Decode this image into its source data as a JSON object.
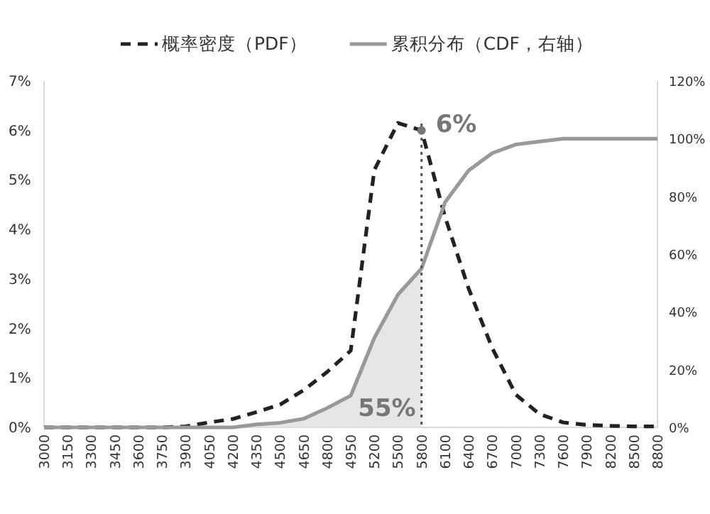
{
  "chart_data": {
    "type": "line",
    "categories": [
      "3000",
      "3150",
      "3300",
      "3450",
      "3600",
      "3750",
      "3900",
      "4050",
      "4200",
      "4350",
      "4500",
      "4650",
      "4800",
      "4950",
      "5200",
      "5500",
      "5800",
      "6100",
      "6400",
      "6700",
      "7000",
      "7300",
      "7600",
      "7900",
      "8200",
      "8500",
      "8800"
    ],
    "series": [
      {
        "name": "概率密度（PDF）",
        "color": "#222222",
        "line_style": "dashed",
        "values": [
          0,
          0,
          0,
          0,
          0,
          0,
          0.02,
          0.1,
          0.17,
          0.31,
          0.46,
          0.75,
          1.12,
          1.55,
          5.2,
          6.15,
          6.0,
          4.25,
          2.8,
          1.6,
          0.66,
          0.27,
          0.1,
          0.05,
          0.03,
          0.02,
          0.02
        ]
      },
      {
        "type": "area",
        "color": "#e6e6e6",
        "axis": "y2",
        "values": [
          0,
          0,
          0,
          0,
          0,
          0,
          0,
          0,
          0,
          1,
          1.6,
          3,
          6.7,
          11,
          31,
          46,
          55,
          null,
          null,
          null,
          null,
          null,
          null,
          null,
          null,
          null,
          null
        ]
      },
      {
        "name": "累积分布（CDF，右轴）",
        "color": "#999999",
        "line_style": "solid",
        "axis": "y2",
        "values": [
          0,
          0,
          0,
          0,
          0,
          0,
          0,
          0,
          0,
          1,
          1.6,
          3,
          6.7,
          11,
          31,
          46,
          55,
          78,
          89,
          95,
          98,
          99,
          100,
          100,
          100,
          100,
          100
        ]
      }
    ],
    "ylim": [
      0,
      7
    ],
    "yticks": [
      {
        "value": 0,
        "label": "0%"
      },
      {
        "value": 1,
        "label": "1%"
      },
      {
        "value": 2,
        "label": "2%"
      },
      {
        "value": 3,
        "label": "3%"
      },
      {
        "value": 4,
        "label": "4%"
      },
      {
        "value": 5,
        "label": "5%"
      },
      {
        "value": 6,
        "label": "6%"
      },
      {
        "value": 7,
        "label": "7%"
      }
    ],
    "y2lim": [
      0,
      120
    ],
    "y2ticks": [
      {
        "value": 0,
        "label": "0%"
      },
      {
        "value": 20,
        "label": "20%"
      },
      {
        "value": 40,
        "label": "40%"
      },
      {
        "value": 60,
        "label": "60%"
      },
      {
        "value": 80,
        "label": "80%"
      },
      {
        "value": 100,
        "label": "100%"
      },
      {
        "value": 120,
        "label": "120%"
      }
    ],
    "ref_lines": [
      {
        "axis": "x",
        "value": "5800",
        "color": "#555555",
        "line_style": "dotted"
      }
    ],
    "annotations": [
      {
        "text": "6%",
        "x": "5800",
        "y": 6
      },
      "55%"
    ],
    "legend": "top",
    "grid": false
  }
}
